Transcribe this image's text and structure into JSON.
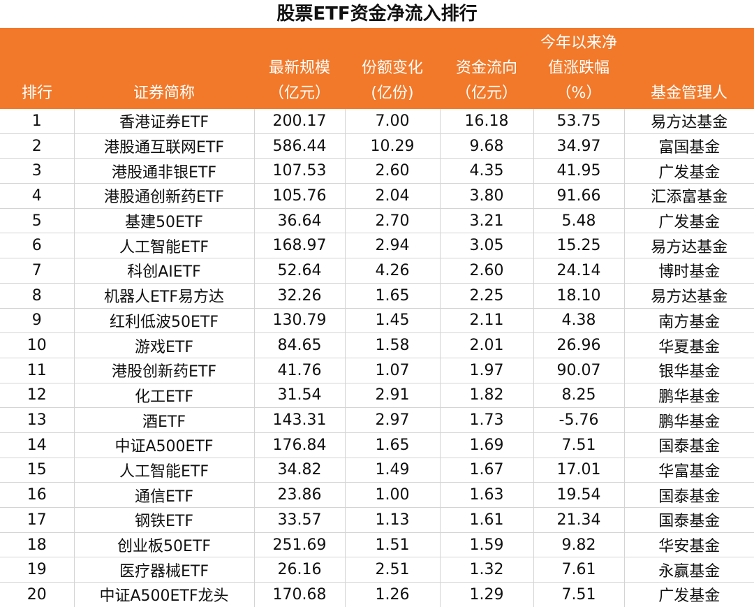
{
  "title": "股票ETF资金净流入排行",
  "header": {
    "rank": "排行",
    "name": "证券简称",
    "scale_l1": "最新规模",
    "scale_l2": "（亿元）",
    "share_l1": "份额变化",
    "share_l2": "(亿份)",
    "flow_l1": "资金流向",
    "flow_l2": "（亿元）",
    "ytd_l1": "今年以来净",
    "ytd_l2": "值涨跌幅",
    "ytd_l3": "（%）",
    "manager": "基金管理人"
  },
  "rows": [
    {
      "rank": "1",
      "name": "香港证券ETF",
      "scale": "200.17",
      "share": "7.00",
      "flow": "16.18",
      "ytd": "53.75",
      "manager": "易方达基金"
    },
    {
      "rank": "2",
      "name": "港股通互联网ETF",
      "scale": "586.44",
      "share": "10.29",
      "flow": "9.68",
      "ytd": "34.97",
      "manager": "富国基金"
    },
    {
      "rank": "3",
      "name": "港股通非银ETF",
      "scale": "107.53",
      "share": "2.60",
      "flow": "4.35",
      "ytd": "41.95",
      "manager": "广发基金"
    },
    {
      "rank": "4",
      "name": "港股通创新药ETF",
      "scale": "105.76",
      "share": "2.04",
      "flow": "3.80",
      "ytd": "91.66",
      "manager": "汇添富基金"
    },
    {
      "rank": "5",
      "name": "基建50ETF",
      "scale": "36.64",
      "share": "2.70",
      "flow": "3.21",
      "ytd": "5.48",
      "manager": "广发基金"
    },
    {
      "rank": "6",
      "name": "人工智能ETF",
      "scale": "168.97",
      "share": "2.94",
      "flow": "3.05",
      "ytd": "15.25",
      "manager": "易方达基金"
    },
    {
      "rank": "7",
      "name": "科创AIETF",
      "scale": "52.64",
      "share": "4.26",
      "flow": "2.60",
      "ytd": "24.14",
      "manager": "博时基金"
    },
    {
      "rank": "8",
      "name": "机器人ETF易方达",
      "scale": "32.26",
      "share": "1.65",
      "flow": "2.25",
      "ytd": "18.10",
      "manager": "易方达基金"
    },
    {
      "rank": "9",
      "name": "红利低波50ETF",
      "scale": "130.79",
      "share": "1.45",
      "flow": "2.11",
      "ytd": "4.38",
      "manager": "南方基金"
    },
    {
      "rank": "10",
      "name": "游戏ETF",
      "scale": "84.65",
      "share": "1.58",
      "flow": "2.01",
      "ytd": "26.96",
      "manager": "华夏基金"
    },
    {
      "rank": "11",
      "name": "港股创新药ETF",
      "scale": "41.76",
      "share": "1.07",
      "flow": "1.97",
      "ytd": "90.07",
      "manager": "银华基金"
    },
    {
      "rank": "12",
      "name": "化工ETF",
      "scale": "31.54",
      "share": "2.91",
      "flow": "1.82",
      "ytd": "8.25",
      "manager": "鹏华基金"
    },
    {
      "rank": "13",
      "name": "酒ETF",
      "scale": "143.31",
      "share": "2.97",
      "flow": "1.73",
      "ytd": "-5.76",
      "manager": "鹏华基金"
    },
    {
      "rank": "14",
      "name": "中证A500ETF",
      "scale": "176.84",
      "share": "1.65",
      "flow": "1.69",
      "ytd": "7.51",
      "manager": "国泰基金"
    },
    {
      "rank": "15",
      "name": "人工智能ETF",
      "scale": "34.82",
      "share": "1.49",
      "flow": "1.67",
      "ytd": "17.01",
      "manager": "华富基金"
    },
    {
      "rank": "16",
      "name": "通信ETF",
      "scale": "23.86",
      "share": "1.00",
      "flow": "1.63",
      "ytd": "19.54",
      "manager": "国泰基金"
    },
    {
      "rank": "17",
      "name": "钢铁ETF",
      "scale": "33.57",
      "share": "1.13",
      "flow": "1.61",
      "ytd": "21.34",
      "manager": "国泰基金"
    },
    {
      "rank": "18",
      "name": "创业板50ETF",
      "scale": "251.69",
      "share": "1.51",
      "flow": "1.59",
      "ytd": "9.82",
      "manager": "华安基金"
    },
    {
      "rank": "19",
      "name": "医疗器械ETF",
      "scale": "26.16",
      "share": "2.51",
      "flow": "1.32",
      "ytd": "7.61",
      "manager": "永赢基金"
    },
    {
      "rank": "20",
      "name": "中证A500ETF龙头",
      "scale": "170.68",
      "share": "1.26",
      "flow": "1.29",
      "ytd": "7.51",
      "manager": "广发基金"
    }
  ]
}
